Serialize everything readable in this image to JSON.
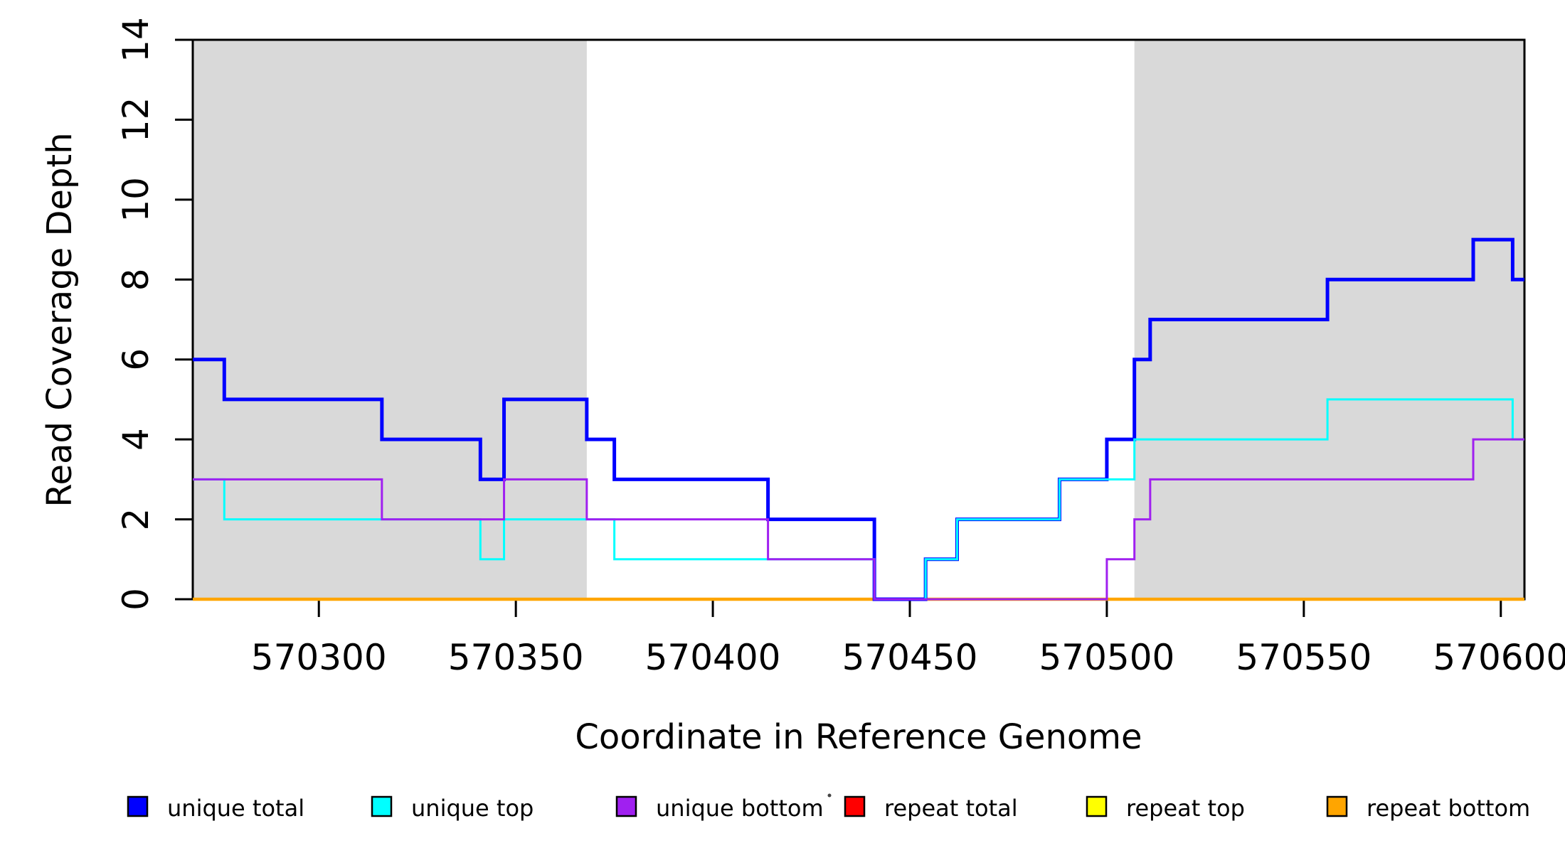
{
  "figure": {
    "background": "#FFFFFF",
    "axis_color": "#000000"
  },
  "chart_data": {
    "type": "line",
    "subtype": "step",
    "title": "",
    "xlabel": "Coordinate in Reference Genome",
    "ylabel": "Read Coverage Depth",
    "xlim": [
      570268,
      570606
    ],
    "ylim": [
      0,
      14
    ],
    "x_ticks": [
      570300,
      570350,
      570400,
      570450,
      570500,
      570550,
      570600
    ],
    "y_ticks": [
      0,
      2,
      4,
      6,
      8,
      10,
      12,
      14
    ],
    "grid": false,
    "legend_position": "bottom",
    "shaded_regions": [
      {
        "name": "repeat-region-left",
        "x0": 570268,
        "x1": 570368,
        "color": "#D9D9D9"
      },
      {
        "name": "repeat-region-right",
        "x0": 570507,
        "x1": 570606,
        "color": "#D9D9D9"
      }
    ],
    "series": [
      {
        "name": "repeat total",
        "color": "#FF0000",
        "width": 4,
        "steps": [
          [
            570268,
            0
          ]
        ]
      },
      {
        "name": "repeat top",
        "color": "#FFFF00",
        "width": 3,
        "steps": [
          [
            570268,
            0
          ]
        ]
      },
      {
        "name": "repeat bottom",
        "color": "#FFA500",
        "width": 4.5,
        "steps": [
          [
            570268,
            0
          ]
        ]
      },
      {
        "name": "unique total",
        "color": "#0000FF",
        "width": 5,
        "steps": [
          [
            570268,
            6
          ],
          [
            570276,
            5
          ],
          [
            570316,
            4
          ],
          [
            570341,
            3
          ],
          [
            570347,
            5
          ],
          [
            570368,
            4
          ],
          [
            570375,
            3
          ],
          [
            570414,
            2
          ],
          [
            570441,
            0
          ],
          [
            570454,
            1
          ],
          [
            570462,
            2
          ],
          [
            570488,
            3
          ],
          [
            570500,
            4
          ],
          [
            570507,
            6
          ],
          [
            570511,
            7
          ],
          [
            570556,
            8
          ],
          [
            570593,
            9
          ],
          [
            570603,
            8
          ]
        ]
      },
      {
        "name": "unique top",
        "color": "#00FFFF",
        "width": 3,
        "steps": [
          [
            570268,
            3
          ],
          [
            570276,
            2
          ],
          [
            570341,
            1
          ],
          [
            570347,
            2
          ],
          [
            570375,
            1
          ],
          [
            570441,
            0
          ],
          [
            570454,
            1
          ],
          [
            570462,
            2
          ],
          [
            570488,
            3
          ],
          [
            570507,
            4
          ],
          [
            570556,
            5
          ],
          [
            570603,
            4
          ]
        ]
      },
      {
        "name": "unique bottom",
        "color": "#A020F0",
        "width": 3,
        "steps": [
          [
            570268,
            3
          ],
          [
            570316,
            2
          ],
          [
            570347,
            3
          ],
          [
            570368,
            2
          ],
          [
            570414,
            1
          ],
          [
            570441,
            0
          ],
          [
            570500,
            1
          ],
          [
            570507,
            2
          ],
          [
            570511,
            3
          ],
          [
            570593,
            4
          ]
        ]
      }
    ],
    "legend": [
      {
        "label": "unique total",
        "color": "#0000FF"
      },
      {
        "label": "unique top",
        "color": "#00FFFF"
      },
      {
        "label": "unique bottom",
        "color": "#A020F0"
      },
      {
        "label": "repeat total",
        "color": "#FF0000"
      },
      {
        "label": "repeat top",
        "color": "#FFFF00"
      },
      {
        "label": "repeat bottom",
        "color": "#FFA500"
      }
    ],
    "artifacts": [
      {
        "name": "stray-dot",
        "x": 1166,
        "y": 1119
      }
    ]
  }
}
